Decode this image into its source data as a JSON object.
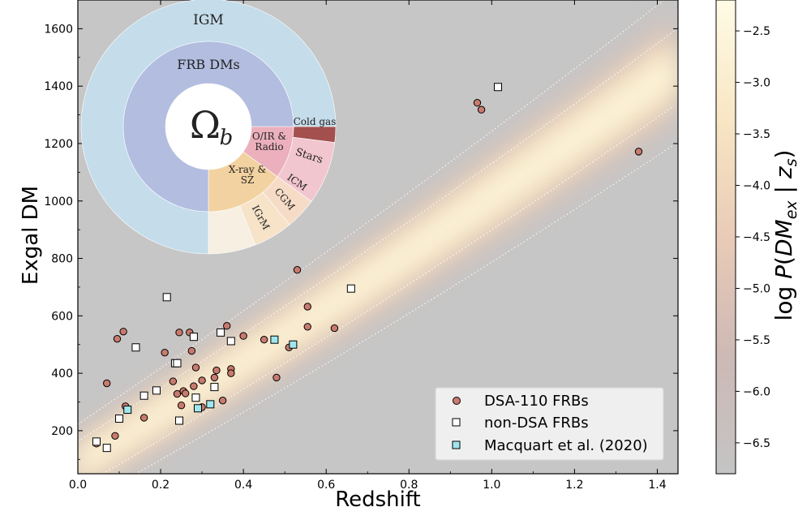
{
  "chart_data": {
    "type": "scatter",
    "title": "",
    "xlabel": "Redshift",
    "ylabel": "Exgal DM",
    "xlim": [
      0.0,
      1.45
    ],
    "ylim": [
      50,
      1700
    ],
    "x_ticks": [
      "0.0",
      "0.2",
      "0.4",
      "0.6",
      "0.8",
      "1.0",
      "1.2",
      "1.4"
    ],
    "y_ticks": [
      "200",
      "400",
      "600",
      "800",
      "1000",
      "1200",
      "1400",
      "1600"
    ],
    "colorbar": {
      "label": "log P(DM_ex | z_s)",
      "label_main": "log ",
      "label_p": "P",
      "label_dm": "DM",
      "label_sub_ex": "ex",
      "label_bar": " | ",
      "label_z": "z",
      "label_sub_s": "s",
      "label_close": ")",
      "label_open": "(",
      "ticks": [
        "−2.5",
        "−3.0",
        "−3.5",
        "−4.0",
        "−4.5",
        "−5.0",
        "−5.5",
        "−6.0",
        "−6.5"
      ],
      "tick_values": [
        -2.5,
        -3.0,
        -3.5,
        -4.0,
        -4.5,
        -5.0,
        -5.5,
        -6.0,
        -6.5
      ],
      "range": [
        -6.8,
        -2.2
      ]
    },
    "legend_position": "lower-right",
    "series": [
      {
        "name": "DSA-110 FRBs",
        "marker": "circle",
        "color": "#c97a6e",
        "points": [
          [
            0.045,
            155
          ],
          [
            0.07,
            365
          ],
          [
            0.09,
            182
          ],
          [
            0.095,
            520
          ],
          [
            0.11,
            545
          ],
          [
            0.115,
            285
          ],
          [
            0.16,
            245
          ],
          [
            0.21,
            472
          ],
          [
            0.23,
            372
          ],
          [
            0.24,
            328
          ],
          [
            0.245,
            542
          ],
          [
            0.25,
            288
          ],
          [
            0.255,
            338
          ],
          [
            0.26,
            330
          ],
          [
            0.27,
            542
          ],
          [
            0.275,
            478
          ],
          [
            0.28,
            355
          ],
          [
            0.285,
            420
          ],
          [
            0.3,
            375
          ],
          [
            0.3,
            282
          ],
          [
            0.33,
            385
          ],
          [
            0.335,
            410
          ],
          [
            0.35,
            305
          ],
          [
            0.36,
            565
          ],
          [
            0.37,
            415
          ],
          [
            0.37,
            400
          ],
          [
            0.4,
            530
          ],
          [
            0.45,
            517
          ],
          [
            0.48,
            385
          ],
          [
            0.51,
            490
          ],
          [
            0.53,
            760
          ],
          [
            0.555,
            632
          ],
          [
            0.555,
            562
          ],
          [
            0.62,
            557
          ],
          [
            0.965,
            1342
          ],
          [
            0.975,
            1318
          ],
          [
            1.355,
            1172
          ]
        ]
      },
      {
        "name": "non-DSA FRBs",
        "marker": "square",
        "color": "#ffffff",
        "points": [
          [
            0.045,
            162
          ],
          [
            0.07,
            140
          ],
          [
            0.1,
            242
          ],
          [
            0.14,
            490
          ],
          [
            0.16,
            322
          ],
          [
            0.19,
            340
          ],
          [
            0.215,
            665
          ],
          [
            0.235,
            435
          ],
          [
            0.24,
            435
          ],
          [
            0.245,
            235
          ],
          [
            0.28,
            527
          ],
          [
            0.285,
            315
          ],
          [
            0.33,
            352
          ],
          [
            0.345,
            542
          ],
          [
            0.37,
            512
          ],
          [
            0.66,
            695
          ],
          [
            1.015,
            1397
          ]
        ]
      },
      {
        "name": "Macquart et al. (2020)",
        "marker": "square",
        "color": "#9fe6ee",
        "points": [
          [
            0.12,
            273
          ],
          [
            0.29,
            278
          ],
          [
            0.32,
            292
          ],
          [
            0.475,
            517
          ],
          [
            0.52,
            500
          ]
        ]
      }
    ],
    "inset_pie": {
      "center_symbol": "Ω",
      "center_subscript": "b",
      "outer_ring": [
        {
          "label": "IGM",
          "value": 75,
          "color": "#c5dcea"
        },
        {
          "label": "Cold gas",
          "value": 2,
          "color": "#a3504e"
        },
        {
          "label": "Stars",
          "value": 8,
          "color": "#f2c6cf"
        },
        {
          "label": "ICM",
          "value": 4,
          "color": "#f6dcc6"
        },
        {
          "label": "CGM",
          "value": 5,
          "color": "#f6e3c8"
        },
        {
          "label": "IGrM",
          "value": 6,
          "color": "#f6efe2"
        }
      ],
      "inner_ring": [
        {
          "label": "FRB DMs",
          "value": 75,
          "color": "#b2bde0"
        },
        {
          "label": "O/IR & Radio",
          "value": 10,
          "color": "#ebb0bc"
        },
        {
          "label": "X-ray & SZ",
          "value": 15,
          "color": "#f2d2a0"
        }
      ]
    }
  }
}
